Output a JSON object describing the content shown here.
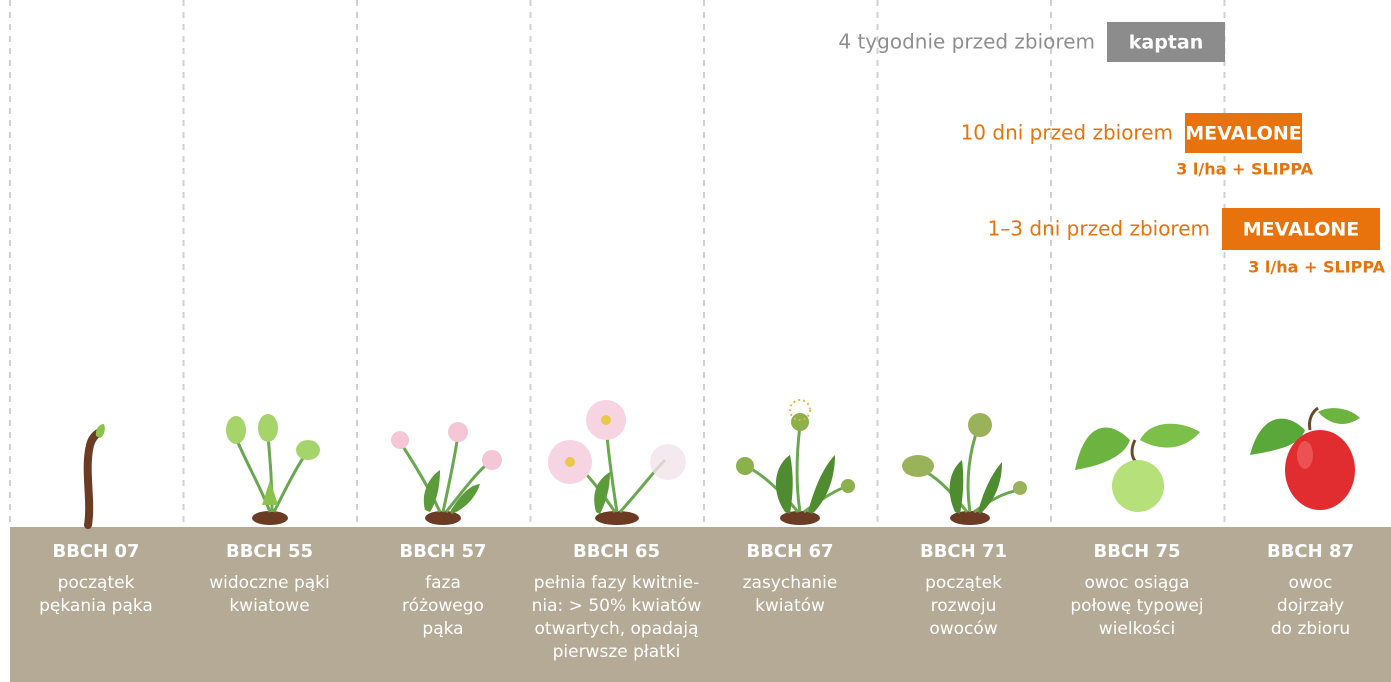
{
  "treatments": [
    {
      "timing": "4 tygodnie przed zbiorem",
      "product": "kaptan",
      "color": "#8c8c8c",
      "text_color": "#8f8f8f"
    },
    {
      "timing": "10 dni przed zbiorem",
      "product": "MEVALONE",
      "dose": "3 l/ha + SLIPPA",
      "color": "#e8730c",
      "text_color": "#e8730c"
    },
    {
      "timing": "1–3 dni przed zbiorem",
      "product": "MEVALONE",
      "dose": "3 l/ha + SLIPPA",
      "color": "#e8730c",
      "text_color": "#e8730c"
    }
  ],
  "stages": [
    {
      "code": "BBCH 07",
      "description_lines": [
        "początek",
        "pękania pąka"
      ]
    },
    {
      "code": "BBCH 55",
      "description_lines": [
        "widoczne pąki",
        "kwiatowe"
      ]
    },
    {
      "code": "BBCH 57",
      "description_lines": [
        "faza",
        "różowego",
        "pąka"
      ]
    },
    {
      "code": "BBCH 65",
      "description_lines": [
        "pełnia fazy kwitnie-",
        "nia: > 50% kwiatów",
        "otwartych, opadają",
        "pierwsze płatki"
      ]
    },
    {
      "code": "BBCH 67",
      "description_lines": [
        "zasychanie",
        "kwiatów"
      ]
    },
    {
      "code": "BBCH 71",
      "description_lines": [
        "początek",
        "rozwoju",
        "owoców"
      ]
    },
    {
      "code": "BBCH 75",
      "description_lines": [
        "owoc osiąga",
        "połowę typowej",
        "wielkości"
      ]
    },
    {
      "code": "BBCH 87",
      "description_lines": [
        "owoc",
        "dojrzały",
        "do zbioru"
      ]
    }
  ]
}
